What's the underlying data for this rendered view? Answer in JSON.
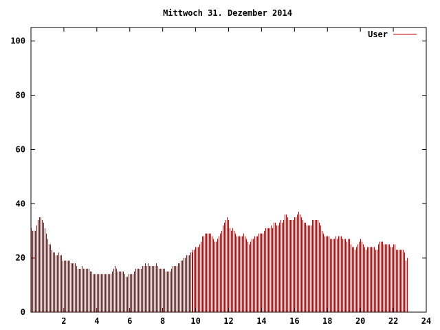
{
  "chart_data": {
    "type": "bar",
    "title": "Mittwoch 31. Dezember 2014",
    "xlabel": "",
    "ylabel": "",
    "xlim": [
      0,
      24
    ],
    "ylim": [
      0,
      105
    ],
    "x_ticks": [
      "2",
      "4",
      "6",
      "8",
      "10",
      "12",
      "14",
      "16",
      "18",
      "20",
      "22",
      "24"
    ],
    "y_ticks": [
      "0",
      "20",
      "40",
      "60",
      "80",
      "100"
    ],
    "legend_position": "top-right",
    "grid": false,
    "series": [
      {
        "name": "User",
        "color": "#cc0000",
        "x_step_hours": 0.0833,
        "values": [
          31,
          30,
          30,
          30,
          32,
          34,
          35,
          35,
          34,
          33,
          31,
          29,
          27,
          25,
          25,
          23,
          22,
          22,
          21,
          21,
          22,
          21,
          21,
          19,
          19,
          19,
          19,
          19,
          19,
          18,
          18,
          18,
          18,
          17,
          16,
          16,
          16,
          17,
          16,
          16,
          16,
          16,
          16,
          15,
          15,
          14,
          14,
          14,
          14,
          14,
          14,
          14,
          14,
          14,
          14,
          14,
          14,
          14,
          14,
          15,
          16,
          17,
          16,
          15,
          15,
          15,
          15,
          15,
          14,
          13,
          13,
          14,
          14,
          14,
          14,
          15,
          16,
          16,
          16,
          16,
          16,
          17,
          17,
          18,
          17,
          18,
          17,
          17,
          17,
          17,
          17,
          18,
          17,
          16,
          16,
          16,
          16,
          16,
          15,
          15,
          15,
          15,
          16,
          17,
          17,
          17,
          17,
          18,
          18,
          19,
          19,
          20,
          20,
          21,
          21,
          21,
          22,
          22,
          23,
          23,
          24,
          24,
          24,
          25,
          26,
          28,
          28,
          29,
          29,
          29,
          29,
          29,
          28,
          27,
          26,
          26,
          27,
          28,
          29,
          30,
          32,
          33,
          34,
          35,
          34,
          31,
          30,
          31,
          30,
          29,
          28,
          28,
          28,
          28,
          28,
          29,
          28,
          27,
          26,
          25,
          26,
          27,
          27,
          28,
          28,
          28,
          29,
          29,
          29,
          29,
          30,
          31,
          31,
          31,
          31,
          32,
          31,
          33,
          33,
          32,
          32,
          33,
          34,
          33,
          34,
          36,
          36,
          35,
          34,
          34,
          34,
          34,
          35,
          35,
          36,
          37,
          36,
          35,
          34,
          33,
          33,
          32,
          32,
          32,
          32,
          34,
          34,
          34,
          34,
          34,
          33,
          32,
          30,
          29,
          28,
          28,
          28,
          28,
          27,
          27,
          27,
          27,
          28,
          27,
          28,
          28,
          28,
          27,
          27,
          27,
          26,
          27,
          27,
          25,
          24,
          24,
          23,
          24,
          25,
          26,
          27,
          26,
          25,
          24,
          23,
          24,
          24,
          24,
          24,
          24,
          24,
          23,
          23,
          25,
          26,
          26,
          26,
          25,
          25,
          25,
          25,
          25,
          24,
          24,
          25,
          25,
          23,
          23,
          23,
          23,
          23,
          23,
          22,
          19,
          20
        ]
      }
    ]
  }
}
